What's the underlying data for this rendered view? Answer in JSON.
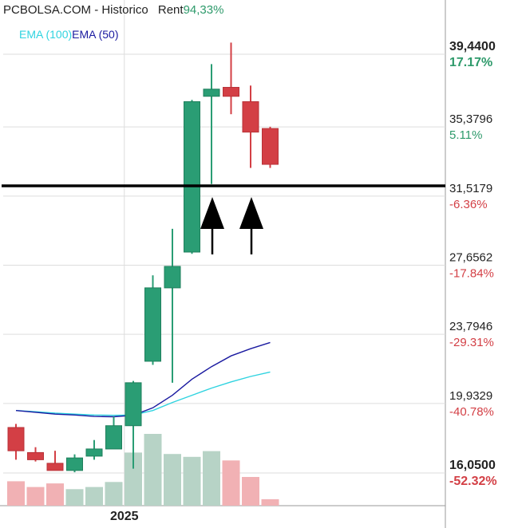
{
  "header": {
    "title": "PCBOLSA.COM - Historico",
    "rent_label": "Rent",
    "rent_value": "94,33%"
  },
  "legend": {
    "ema100": "EMA (100)",
    "ema50": "EMA (50)"
  },
  "colors": {
    "up": "#2a9d74",
    "down": "#d33f45",
    "vol_up": "#b7d3c6",
    "vol_down": "#f1b1b4",
    "ema100": "#2fd3e0",
    "ema50": "#1a1aa0",
    "pct_up": "#2e9a6b",
    "pct_down": "#d33f45"
  },
  "chart_data": {
    "type": "candlestick",
    "x_label": "2025",
    "y_ticks": [
      {
        "price": "39,4400",
        "pct": "17.17%",
        "value": 39.44,
        "bold": true
      },
      {
        "price": "35,3796",
        "pct": "5.11%",
        "value": 35.3796,
        "bold": false
      },
      {
        "price": "31,5179",
        "pct": "-6.36%",
        "value": 31.5179,
        "bold": false
      },
      {
        "price": "27,6562",
        "pct": "-17.84%",
        "value": 27.6562,
        "bold": false
      },
      {
        "price": "23,7946",
        "pct": "-29.31%",
        "value": 23.7946,
        "bold": false
      },
      {
        "price": "19,9329",
        "pct": "-40.78%",
        "value": 19.9329,
        "bold": false
      },
      {
        "price": "16,0500",
        "pct": "-52.32%",
        "value": 16.05,
        "bold": true
      }
    ],
    "horizontal_line": 31.6,
    "candles": [
      {
        "open": 18.1,
        "high": 18.3,
        "low": 16.3,
        "close": 16.8
      },
      {
        "open": 16.7,
        "high": 17.0,
        "low": 16.2,
        "close": 16.3
      },
      {
        "open": 16.1,
        "high": 16.8,
        "low": 15.9,
        "close": 15.7
      },
      {
        "open": 15.7,
        "high": 16.6,
        "low": 15.6,
        "close": 16.4
      },
      {
        "open": 16.5,
        "high": 17.4,
        "low": 16.3,
        "close": 16.9
      },
      {
        "open": 16.9,
        "high": 18.7,
        "low": 16.9,
        "close": 18.2
      },
      {
        "open": 18.2,
        "high": 20.7,
        "low": 15.8,
        "close": 20.6
      },
      {
        "open": 21.8,
        "high": 26.6,
        "low": 21.6,
        "close": 25.9
      },
      {
        "open": 25.9,
        "high": 29.2,
        "low": 20.6,
        "close": 27.1
      },
      {
        "open": 27.9,
        "high": 36.4,
        "low": 27.8,
        "close": 36.3
      },
      {
        "open": 36.6,
        "high": 38.4,
        "low": 31.7,
        "close": 37.0
      },
      {
        "open": 37.1,
        "high": 39.6,
        "low": 35.6,
        "close": 36.6
      },
      {
        "open": 36.3,
        "high": 37.2,
        "low": 32.6,
        "close": 34.6
      },
      {
        "open": 34.8,
        "high": 34.9,
        "low": 32.6,
        "close": 32.8
      }
    ],
    "volumes": [
      0.34,
      0.26,
      0.31,
      0.23,
      0.26,
      0.33,
      0.74,
      1.0,
      0.72,
      0.68,
      0.76,
      0.63,
      0.4,
      0.09
    ],
    "ema50": [
      19.05,
      18.95,
      18.85,
      18.8,
      18.72,
      18.7,
      18.78,
      19.2,
      19.9,
      20.8,
      21.5,
      22.1,
      22.5,
      22.85
    ],
    "ema100": [
      19.05,
      18.98,
      18.9,
      18.85,
      18.8,
      18.78,
      18.8,
      19.05,
      19.5,
      19.9,
      20.3,
      20.65,
      20.95,
      21.2
    ]
  }
}
